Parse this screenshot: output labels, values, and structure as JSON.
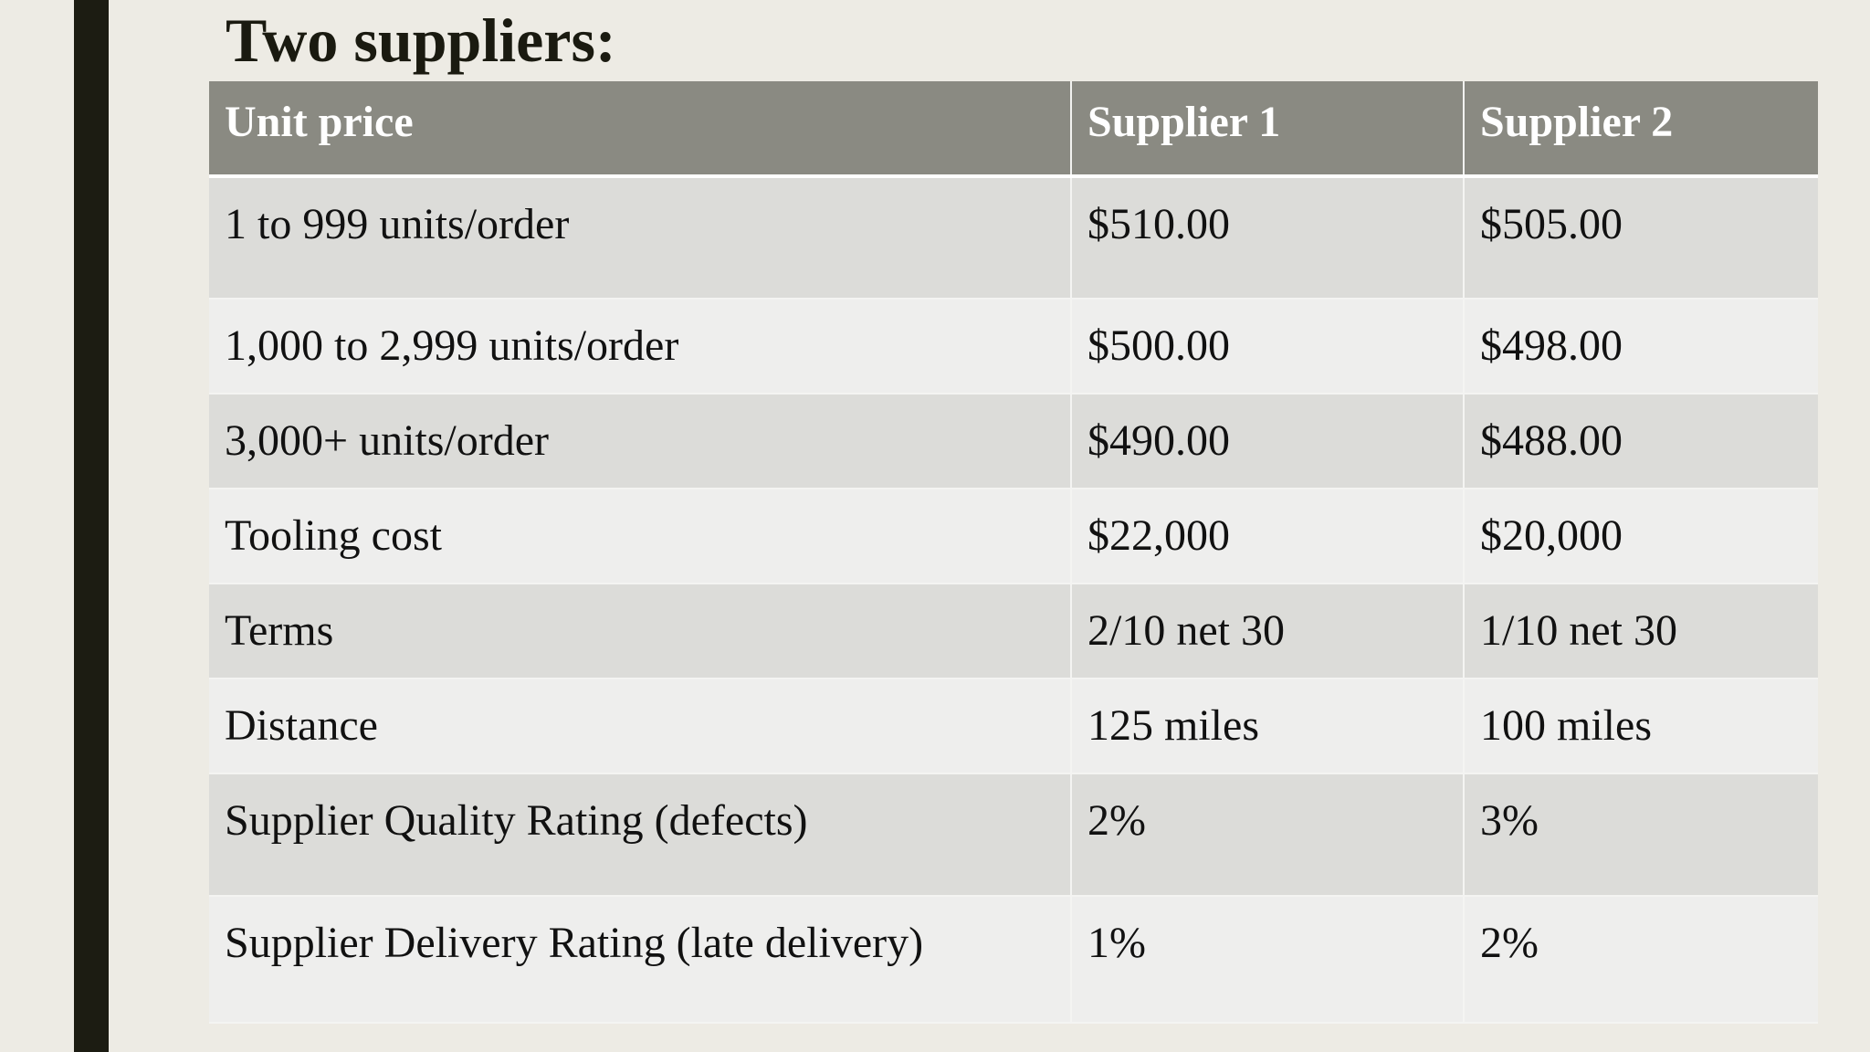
{
  "slide": {
    "title": "Two suppliers:"
  },
  "table": {
    "headers": [
      "Unit price",
      "Supplier 1",
      "Supplier 2"
    ],
    "rows": [
      [
        "1 to 999 units/order",
        "$510.00",
        "$505.00"
      ],
      [
        "1,000 to 2,999 units/order",
        "$500.00",
        "$498.00"
      ],
      [
        "3,000+ units/order",
        "$490.00",
        "$488.00"
      ],
      [
        "Tooling cost",
        "$22,000",
        "$20,000"
      ],
      [
        "Terms",
        "2/10 net 30",
        "1/10 net 30"
      ],
      [
        "Distance",
        "125 miles",
        "100 miles"
      ],
      [
        "Supplier Quality Rating (defects)",
        "2%",
        "3%"
      ],
      [
        "Supplier Delivery Rating (late delivery)",
        "1%",
        "2%"
      ]
    ]
  },
  "colors": {
    "accent_bar": "#1c1c12",
    "header_bg": "#8a8a82",
    "row_dark": "#dcdcd9",
    "row_light": "#eeeeed",
    "background": "#edebe4"
  }
}
